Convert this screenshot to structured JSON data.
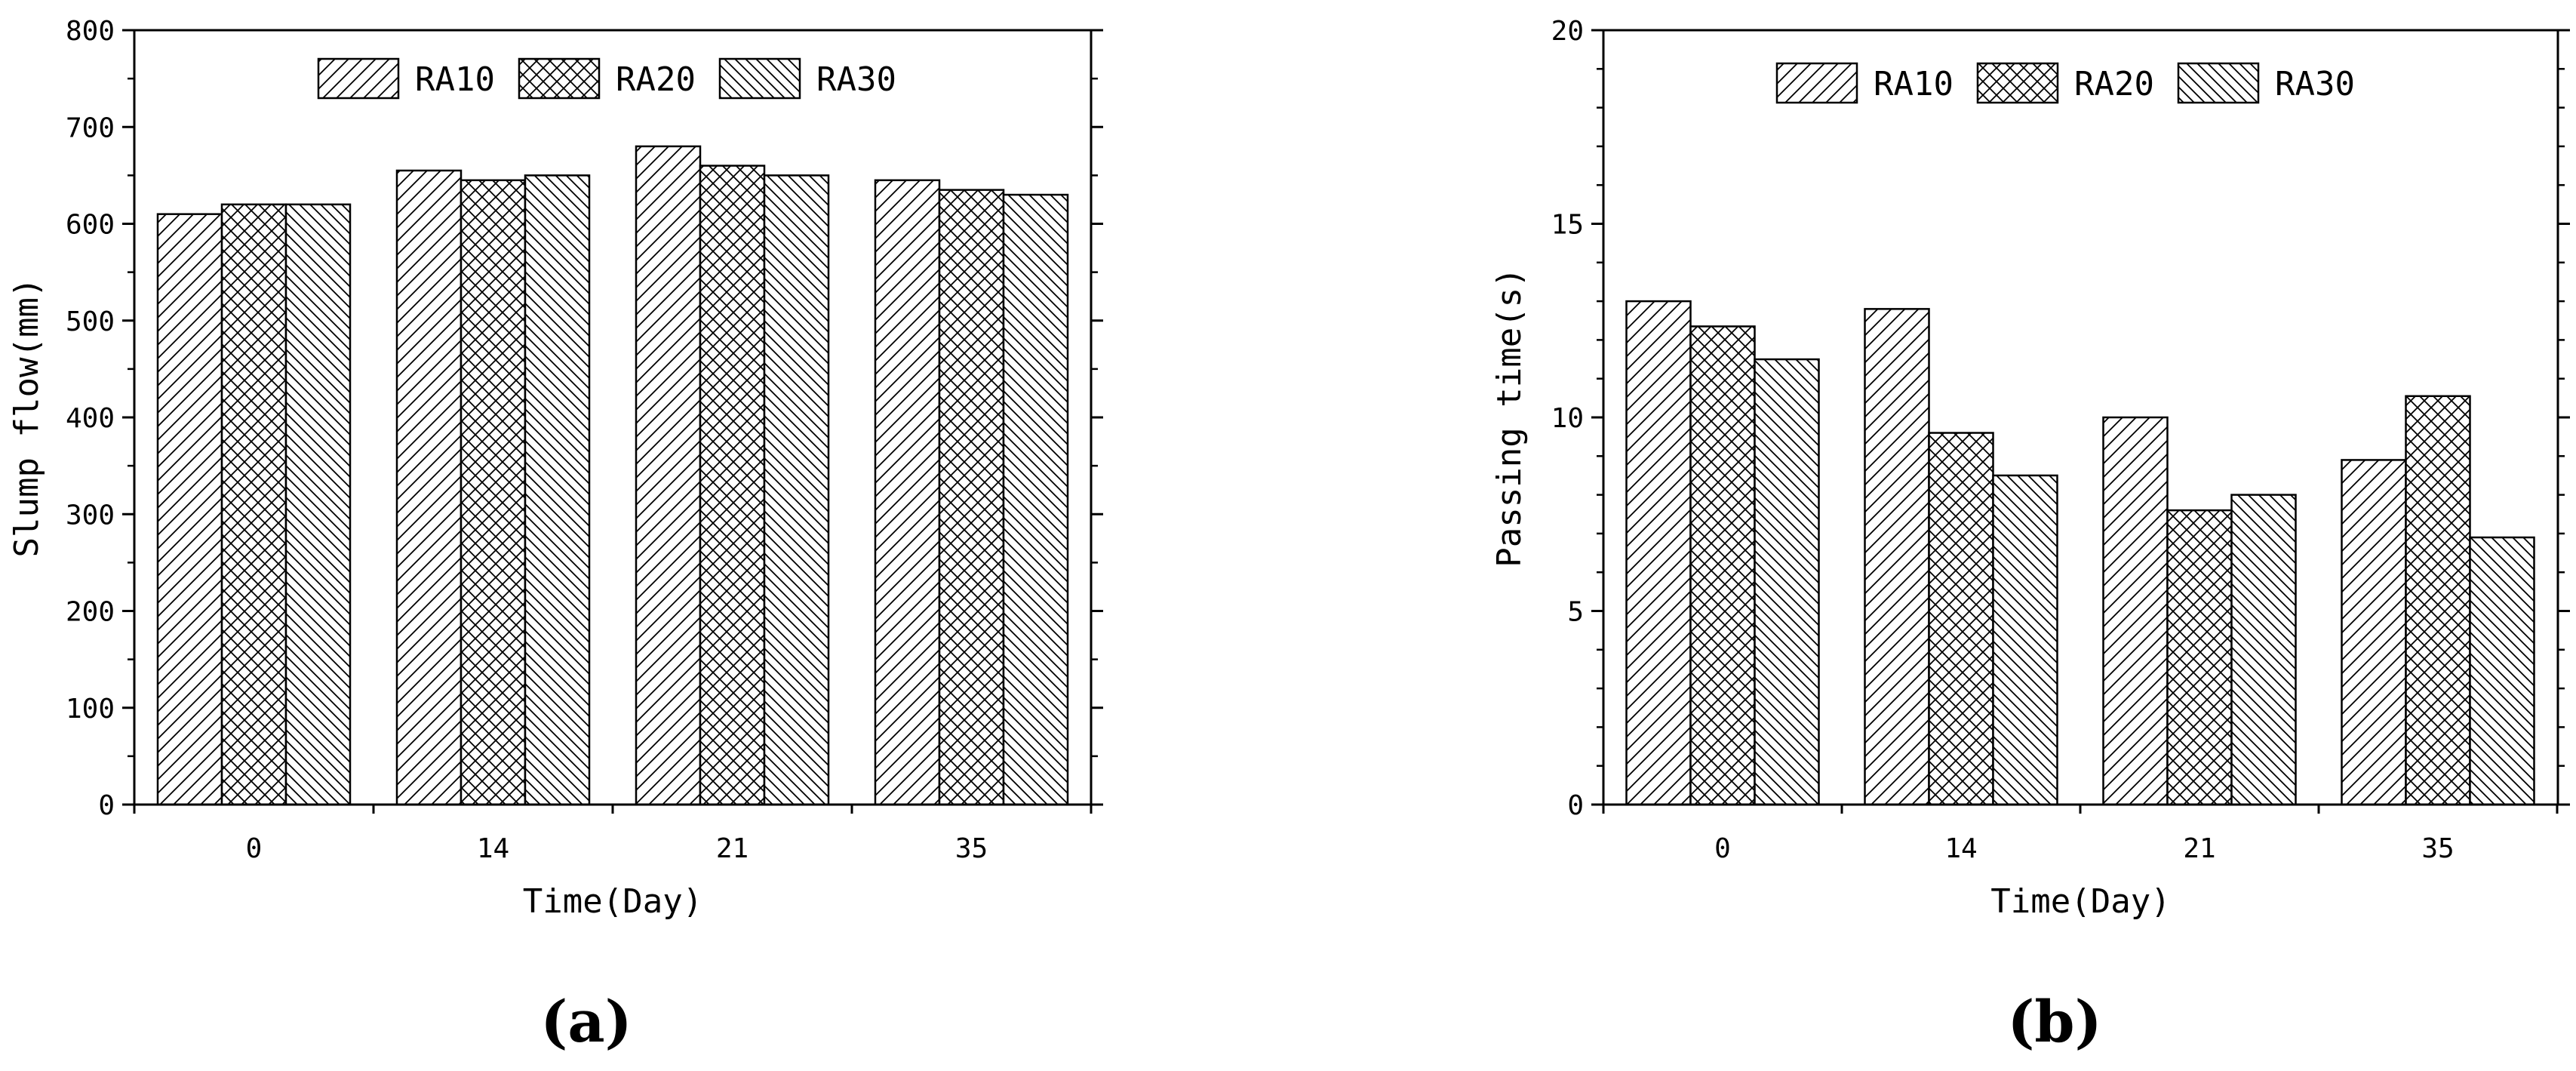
{
  "chart_data": [
    {
      "type": "bar",
      "panel_label": "(a)",
      "xlabel": "Time(Day)",
      "ylabel": "Slump flow(mm)",
      "categories": [
        "0",
        "14",
        "21",
        "35"
      ],
      "ylim": [
        0,
        800
      ],
      "yticks": [
        0,
        100,
        200,
        300,
        400,
        500,
        600,
        700,
        800
      ],
      "series": [
        {
          "name": "RA10",
          "values": [
            610,
            655,
            680,
            645
          ]
        },
        {
          "name": "RA20",
          "values": [
            620,
            645,
            660,
            635
          ]
        },
        {
          "name": "RA30",
          "values": [
            620,
            650,
            650,
            630
          ]
        }
      ],
      "legend": "top-center",
      "grid": false
    },
    {
      "type": "bar",
      "panel_label": "(b)",
      "xlabel": "Time(Day)",
      "ylabel": "Passing time(s)",
      "categories": [
        "0",
        "14",
        "21",
        "35"
      ],
      "ylim": [
        0,
        20
      ],
      "yticks": [
        0,
        5,
        10,
        15,
        20
      ],
      "series": [
        {
          "name": "RA10",
          "values": [
            13.0,
            12.8,
            10.0,
            8.9
          ]
        },
        {
          "name": "RA20",
          "values": [
            12.35,
            9.6,
            7.6,
            10.55
          ]
        },
        {
          "name": "RA30",
          "values": [
            11.5,
            8.5,
            8.0,
            6.9
          ]
        }
      ],
      "legend": "top-center",
      "grid": false
    }
  ]
}
